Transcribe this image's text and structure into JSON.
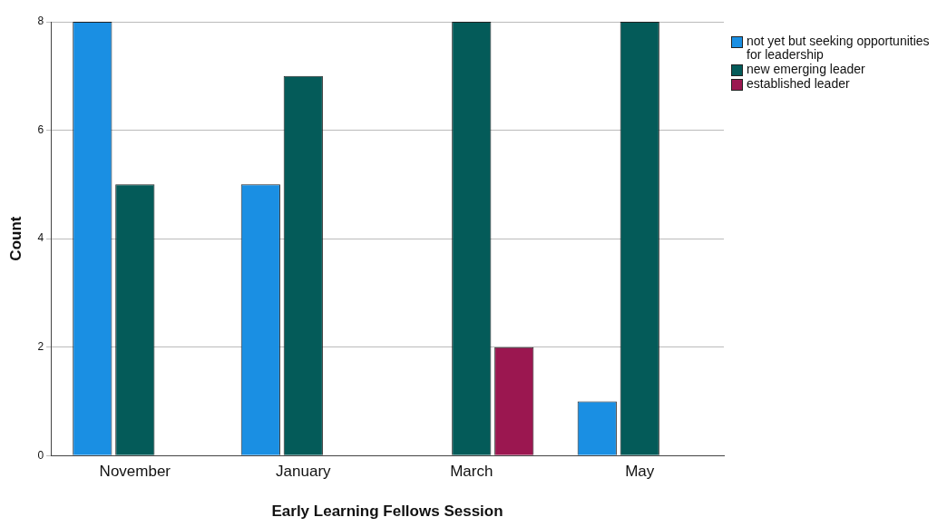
{
  "chart_data": {
    "type": "bar",
    "xlabel": "Early Learning Fellows Session",
    "ylabel": "Count",
    "categories": [
      "November",
      "January",
      "March",
      "May"
    ],
    "series": [
      {
        "name": "not yet but seeking opportunities for leadership",
        "color": "#1a8fe3",
        "values": [
          8,
          5,
          null,
          1
        ]
      },
      {
        "name": "new emerging leader",
        "color": "#045b59",
        "values": [
          5,
          7,
          8,
          8
        ]
      },
      {
        "name": "established leader",
        "color": "#9b1750",
        "values": [
          null,
          null,
          2,
          null
        ]
      }
    ],
    "ylim": [
      0,
      8
    ],
    "yticks": [
      0,
      2,
      4,
      6,
      8
    ],
    "grid": "y",
    "legend": "top right"
  }
}
